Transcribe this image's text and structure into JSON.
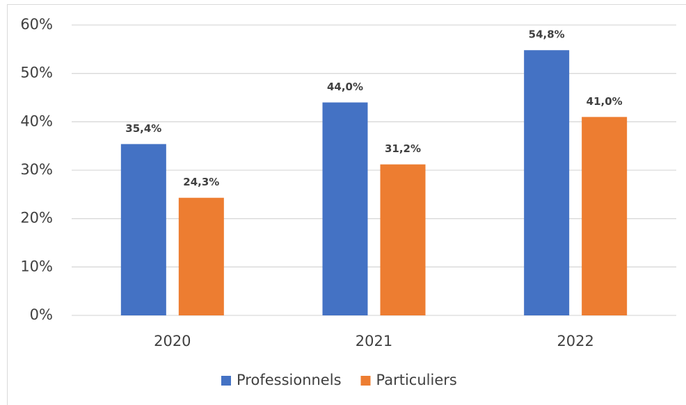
{
  "chart_data": {
    "type": "bar",
    "categories": [
      "2020",
      "2021",
      "2022"
    ],
    "series": [
      {
        "name": "Professionnels",
        "color": "#4472c4",
        "values": [
          35.4,
          44.0,
          54.8
        ],
        "value_labels": [
          "35,4%",
          "44,0%",
          "54,8%"
        ]
      },
      {
        "name": "Particuliers",
        "color": "#ed7d31",
        "values": [
          24.3,
          31.2,
          41.0
        ],
        "value_labels": [
          "24,3%",
          "31,2%",
          "41,0%"
        ]
      }
    ],
    "ylim": [
      0,
      60
    ],
    "yticks": [
      {
        "value": 0,
        "label": "0%"
      },
      {
        "value": 10,
        "label": "10%"
      },
      {
        "value": 20,
        "label": "20%"
      },
      {
        "value": 30,
        "label": "30%"
      },
      {
        "value": 40,
        "label": "40%"
      },
      {
        "value": 50,
        "label": "50%"
      },
      {
        "value": 60,
        "label": "60%"
      }
    ],
    "grid": true,
    "legend": "bottom"
  }
}
